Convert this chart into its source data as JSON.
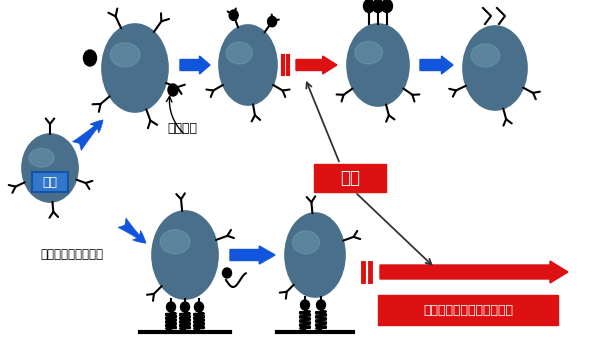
{
  "bg_color": "#ffffff",
  "cell_color": "#4a6f8a",
  "cell_highlight": "#7aaac0",
  "cell_edge_color": "#2a4f6a",
  "arrow_blue": "#1155dd",
  "arrow_red": "#dd1111",
  "text_stimulate": "尊激",
  "text_long_term": "長期間細胞成長尊激が持続",
  "text_cell": "細胞",
  "text_growth_factor": "成長因子",
  "text_fixed_growth_factor": "固定化した成長因子",
  "figsize": [
    6.0,
    3.49
  ],
  "dpi": 100
}
